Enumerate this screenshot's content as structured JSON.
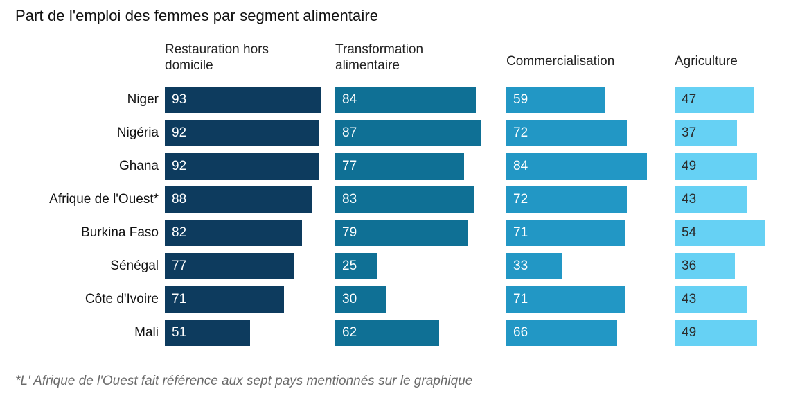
{
  "chart_data": {
    "type": "bar",
    "orientation": "horizontal",
    "title": "Part de l'emploi des femmes par segment alimentaire",
    "footnote": "*L' Afrique de l'Ouest fait référence aux sept pays mentionnés sur le graphique",
    "categories": [
      "Niger",
      "Nigéria",
      "Ghana",
      "Afrique de l'Ouest*",
      "Burkina Faso",
      "Sénégal",
      "Côte d'Ivoire",
      "Mali"
    ],
    "series": [
      {
        "name": "Restauration hors domicile",
        "color": "#0d3b5e",
        "label_color": "#ffffff",
        "values": [
          93,
          92,
          92,
          88,
          82,
          77,
          71,
          51
        ]
      },
      {
        "name": "Transformation alimentaire",
        "color": "#0f7095",
        "label_color": "#ffffff",
        "values": [
          84,
          87,
          77,
          83,
          79,
          25,
          30,
          62
        ]
      },
      {
        "name": "Commercialisation",
        "color": "#2297c5",
        "label_color": "#ffffff",
        "values": [
          59,
          72,
          84,
          72,
          71,
          33,
          71,
          66
        ]
      },
      {
        "name": "Agriculture",
        "color": "#66d1f4",
        "label_color": "#2b2b2b",
        "values": [
          47,
          37,
          49,
          43,
          54,
          36,
          43,
          49
        ]
      }
    ],
    "xlim": [
      0,
      100
    ],
    "value_labels": true,
    "grid": false,
    "legend_position": "column-headers"
  }
}
